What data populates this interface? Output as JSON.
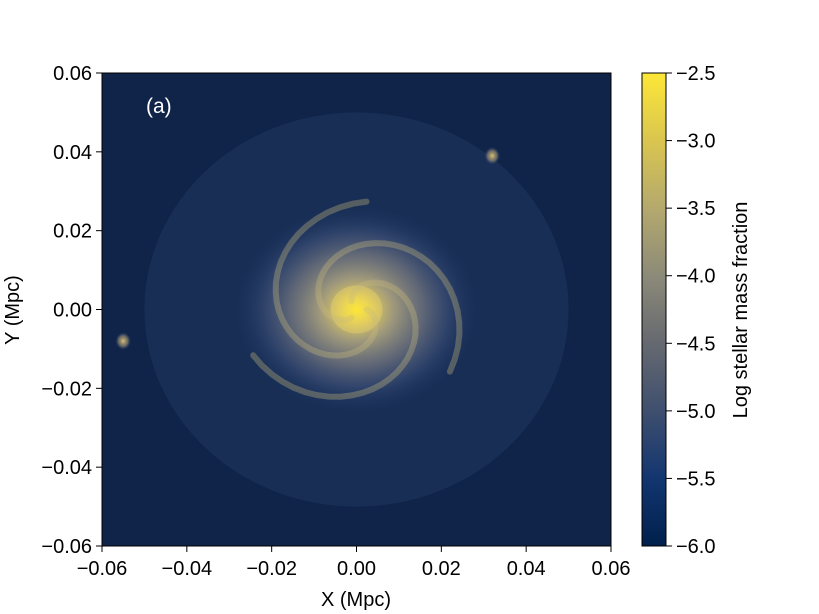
{
  "chart_data": {
    "type": "heatmap",
    "panel_label": "(a)",
    "xlabel": "X (Mpc)",
    "ylabel": "Y (Mpc)",
    "colorbar_label": "Log stellar mass fraction",
    "xlim": [
      -0.06,
      0.06
    ],
    "ylim": [
      -0.06,
      0.06
    ],
    "clim": [
      -6.0,
      -2.5
    ],
    "colormap": "cividis",
    "xticks": [
      "−0.06",
      "−0.04",
      "−0.02",
      "0.00",
      "0.02",
      "0.04",
      "0.06"
    ],
    "yticks": [
      "0.06",
      "0.04",
      "0.02",
      "0.00",
      "−0.02",
      "−0.04",
      "−0.06"
    ],
    "colorbar_ticks": [
      "−2.5",
      "−3.0",
      "−3.5",
      "−4.0",
      "−4.5",
      "−5.0",
      "−5.5",
      "−6.0"
    ],
    "background_level": -5.6,
    "features": [
      {
        "kind": "galaxy_core",
        "x": 0.0,
        "y": 0.0,
        "peak": -2.6
      },
      {
        "kind": "spiral_disk",
        "x": 0.0,
        "y": 0.0,
        "radius": 0.025,
        "level": -4.2
      },
      {
        "kind": "satellite",
        "x": 0.032,
        "y": 0.039,
        "peak": -4.0
      },
      {
        "kind": "satellite",
        "x": -0.055,
        "y": -0.008,
        "peak": -4.0
      }
    ]
  }
}
